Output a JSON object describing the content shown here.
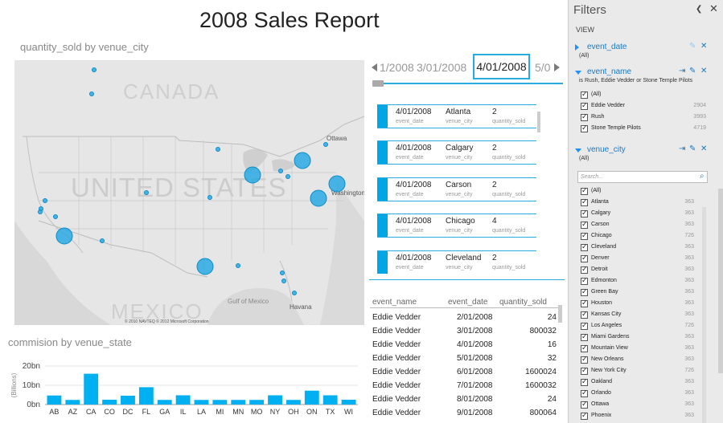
{
  "report": {
    "title": "2008 Sales Report"
  },
  "map": {
    "title": "quantity_sold by venue_city",
    "watermark": "UNITED STATES",
    "canada_label": "CANADA",
    "mexico_label": "MEXICO",
    "gulf_label": "Gulf of Mexico",
    "cities": [
      "Ottawa",
      "Washington",
      "Havana"
    ],
    "copyright": "© 2010 NAVTEQ © 2012 Microsoft Corporation",
    "bubble_color": "#1fa6e3"
  },
  "commission": {
    "title": "commision by venue_state",
    "chart_data": {
      "type": "bar",
      "categories": [
        "AB",
        "AZ",
        "CA",
        "CO",
        "DC",
        "FL",
        "GA",
        "IL",
        "LA",
        "MI",
        "MN",
        "MO",
        "NY",
        "OH",
        "ON",
        "TX",
        "WI"
      ],
      "values": [
        4.7,
        2.4,
        16.0,
        2.5,
        4.6,
        9.0,
        2.4,
        4.8,
        2.4,
        2.4,
        2.4,
        2.4,
        4.8,
        2.4,
        7.2,
        4.8,
        2.5
      ],
      "ylabel": "(Billions)",
      "yticks": [
        "0bn",
        "10bn",
        "20bn"
      ],
      "ylim": [
        0,
        20
      ],
      "color": "#00b0f0"
    }
  },
  "timeline": {
    "dates": [
      "1/2008",
      "3/01/2008",
      "5/0"
    ],
    "selected": "4/01/2008",
    "accent": "#29abe2"
  },
  "cards": {
    "labels": {
      "date": "event_date",
      "city": "venue_city",
      "qty": "quantity_sold"
    },
    "items": [
      {
        "date": "4/01/2008",
        "city": "Atlanta",
        "qty": "2"
      },
      {
        "date": "4/01/2008",
        "city": "Calgary",
        "qty": "2"
      },
      {
        "date": "4/01/2008",
        "city": "Carson",
        "qty": "2"
      },
      {
        "date": "4/01/2008",
        "city": "Chicago",
        "qty": "4"
      },
      {
        "date": "4/01/2008",
        "city": "Cleveland",
        "qty": "2"
      }
    ]
  },
  "table": {
    "headers": [
      "event_name",
      "event_date",
      "quantity_sold"
    ],
    "rows": [
      [
        "Eddie Vedder",
        "2/01/2008",
        "24"
      ],
      [
        "Eddie Vedder",
        "3/01/2008",
        "800032"
      ],
      [
        "Eddie Vedder",
        "4/01/2008",
        "16"
      ],
      [
        "Eddie Vedder",
        "5/01/2008",
        "32"
      ],
      [
        "Eddie Vedder",
        "6/01/2008",
        "1600024"
      ],
      [
        "Eddie Vedder",
        "7/01/2008",
        "1600032"
      ],
      [
        "Eddie Vedder",
        "8/01/2008",
        "24"
      ],
      [
        "Eddie Vedder",
        "9/01/2008",
        "800064"
      ]
    ]
  },
  "filters": {
    "title": "Filters",
    "view_label": "VIEW",
    "event_date": {
      "name": "event_date",
      "value": "(All)"
    },
    "event_name": {
      "name": "event_name",
      "summary": "is Rush, Eddie Vedder or Stone Temple Pilots",
      "items": [
        {
          "label": "(All)",
          "count": ""
        },
        {
          "label": "Eddie Vedder",
          "count": "2904"
        },
        {
          "label": "Rush",
          "count": "3993"
        },
        {
          "label": "Stone Temple Pilots",
          "count": "4719"
        }
      ]
    },
    "venue_city": {
      "name": "venue_city",
      "value": "(All)",
      "search_placeholder": "Search...",
      "items": [
        {
          "label": "(All)",
          "count": ""
        },
        {
          "label": "Atlanta",
          "count": "363"
        },
        {
          "label": "Calgary",
          "count": "363"
        },
        {
          "label": "Carson",
          "count": "363"
        },
        {
          "label": "Chicago",
          "count": "726"
        },
        {
          "label": "Cleveland",
          "count": "363"
        },
        {
          "label": "Denver",
          "count": "363"
        },
        {
          "label": "Detroit",
          "count": "363"
        },
        {
          "label": "Edmonton",
          "count": "363"
        },
        {
          "label": "Green Bay",
          "count": "363"
        },
        {
          "label": "Houston",
          "count": "363"
        },
        {
          "label": "Kansas City",
          "count": "363"
        },
        {
          "label": "Los Angeles",
          "count": "726"
        },
        {
          "label": "Miami Gardens",
          "count": "363"
        },
        {
          "label": "Mountain View",
          "count": "363"
        },
        {
          "label": "New Orleans",
          "count": "363"
        },
        {
          "label": "New York City",
          "count": "726"
        },
        {
          "label": "Oakland",
          "count": "363"
        },
        {
          "label": "Orlando",
          "count": "363"
        },
        {
          "label": "Ottawa",
          "count": "363"
        },
        {
          "label": "Phoenix",
          "count": "363"
        }
      ]
    }
  }
}
